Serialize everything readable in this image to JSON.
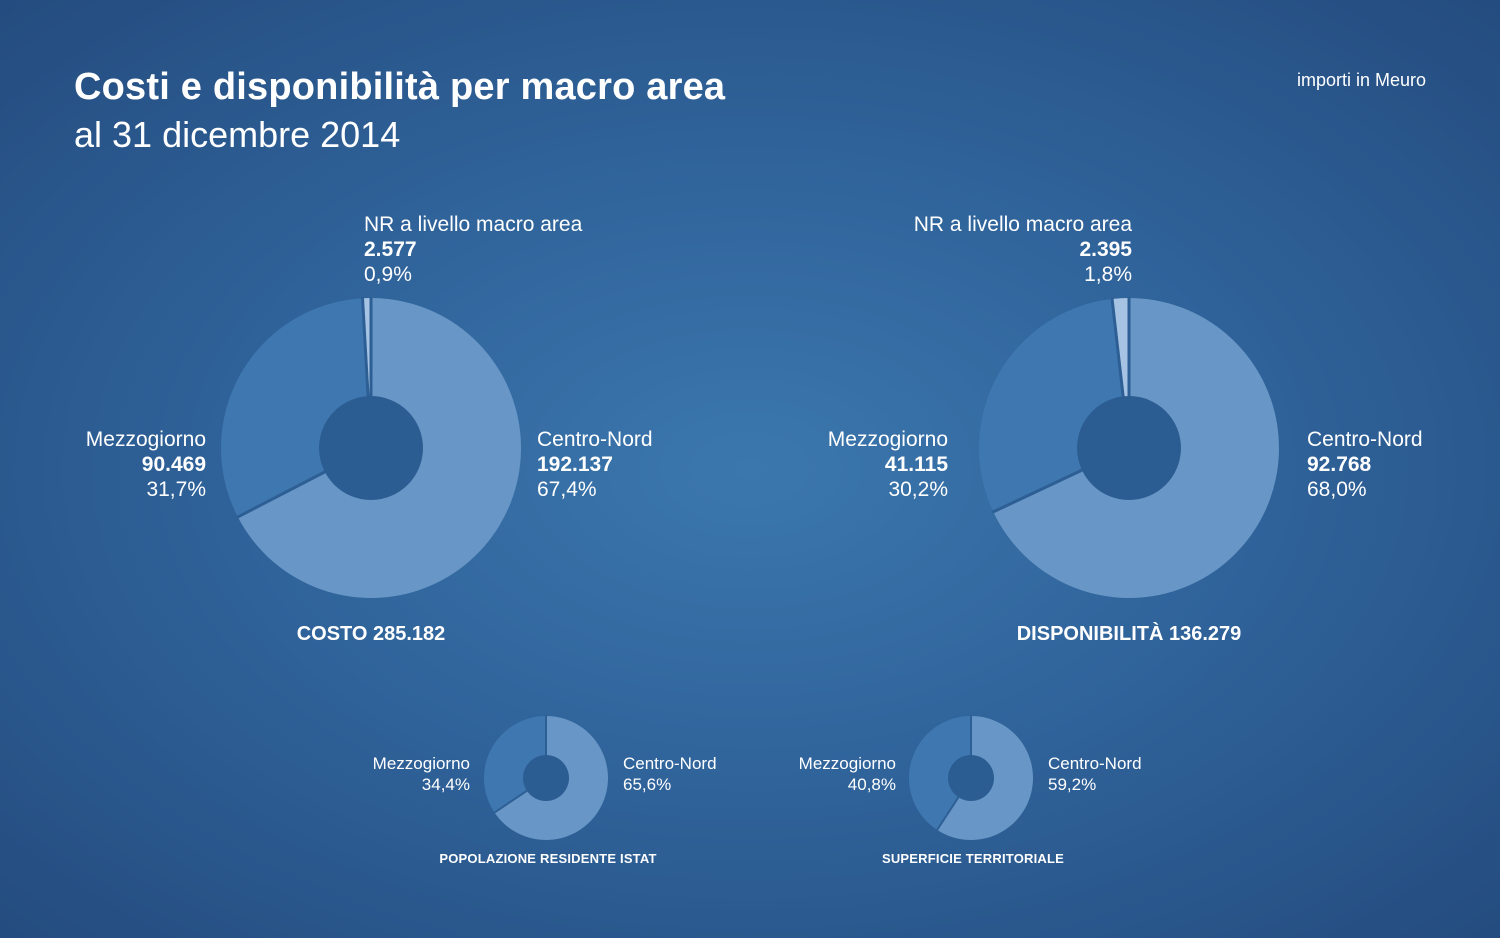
{
  "header": {
    "title": "Costi e disponibilità per macro area",
    "subtitle": "al 31 dicembre 2014",
    "units": "importi in Meuro"
  },
  "colors": {
    "centro_nord": "#6896c6",
    "mezzogiorno": "#3f78b0",
    "nr": "#a6c3e3"
  },
  "chart_data": [
    {
      "type": "pie",
      "title": "COSTO 285.182",
      "slices": [
        {
          "label": "Centro-Nord",
          "value": 192137,
          "value_text": "192.137",
          "percent": 67.4,
          "percent_text": "67,4%"
        },
        {
          "label": "Mezzogiorno",
          "value": 90469,
          "value_text": "90.469",
          "percent": 31.7,
          "percent_text": "31,7%"
        },
        {
          "label": "NR a livello macro area",
          "value": 2577,
          "value_text": "2.577",
          "percent": 0.9,
          "percent_text": "0,9%"
        }
      ]
    },
    {
      "type": "pie",
      "title": "DISPONIBILITÀ 136.279",
      "slices": [
        {
          "label": "Centro-Nord",
          "value": 92768,
          "value_text": "92.768",
          "percent": 68.0,
          "percent_text": "68,0%"
        },
        {
          "label": "Mezzogiorno",
          "value": 41115,
          "value_text": "41.115",
          "percent": 30.2,
          "percent_text": "30,2%"
        },
        {
          "label": "NR a livello macro area",
          "value": 2395,
          "value_text": "2.395",
          "percent": 1.8,
          "percent_text": "1,8%"
        }
      ]
    },
    {
      "type": "pie",
      "title": "POPOLAZIONE RESIDENTE ISTAT",
      "slices": [
        {
          "label": "Centro-Nord",
          "percent": 65.6,
          "percent_text": "65,6%"
        },
        {
          "label": "Mezzogiorno",
          "percent": 34.4,
          "percent_text": "34,4%"
        }
      ]
    },
    {
      "type": "pie",
      "title": "SUPERFICIE TERRITORIALE",
      "slices": [
        {
          "label": "Centro-Nord",
          "percent": 59.2,
          "percent_text": "59,2%"
        },
        {
          "label": "Mezzogiorno",
          "percent": 40.8,
          "percent_text": "40,8%"
        }
      ]
    }
  ]
}
